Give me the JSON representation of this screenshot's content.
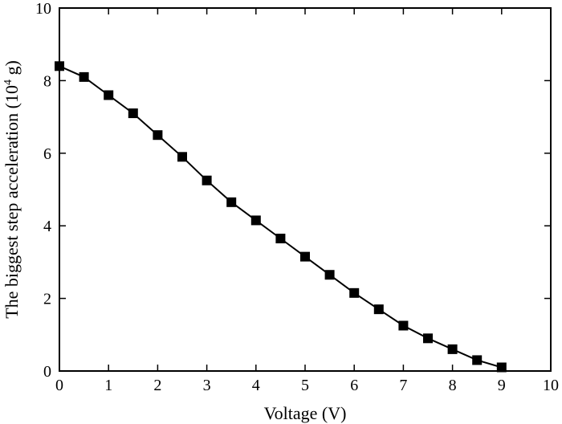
{
  "chart_data": {
    "type": "line",
    "title": "",
    "xlabel": "Voltage (V)",
    "ylabel": "The biggest step acceleration (10",
    "ylabel_superscript": "4",
    "ylabel_suffix": " g)",
    "xlim": [
      0,
      10
    ],
    "ylim": [
      0,
      10
    ],
    "x_ticks": [
      0,
      1,
      2,
      3,
      4,
      5,
      6,
      7,
      8,
      9,
      10
    ],
    "y_ticks": [
      0,
      2,
      4,
      6,
      8,
      10
    ],
    "grid": false,
    "line_color": "#000000",
    "marker": "square",
    "series": [
      {
        "x": [
          0,
          0.5,
          1,
          1.5,
          2,
          2.5,
          3,
          3.5,
          4,
          4.5,
          5,
          5.5,
          6,
          6.5,
          7,
          7.5,
          8,
          8.5,
          9
        ],
        "y": [
          8.4,
          8.1,
          7.6,
          7.1,
          6.5,
          5.9,
          5.25,
          4.65,
          4.15,
          3.65,
          3.15,
          2.65,
          2.15,
          1.7,
          1.25,
          0.9,
          0.6,
          0.3,
          0.1
        ]
      }
    ]
  }
}
